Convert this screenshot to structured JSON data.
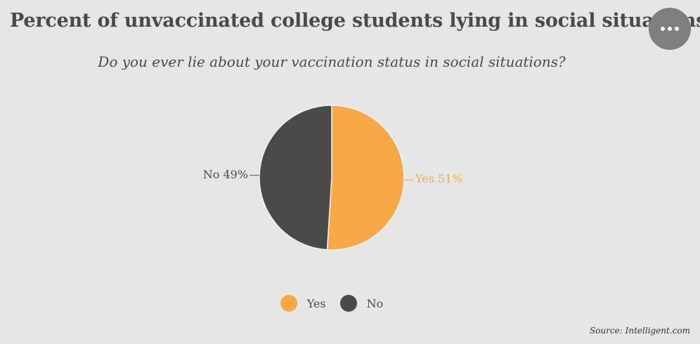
{
  "header": {
    "title": "Percent of unvaccinated college students lying in social situations",
    "menu_icon": "more-horizontal-icon"
  },
  "chart_data": {
    "type": "pie",
    "subtitle": "Do you ever lie about your vaccination status in social situations?",
    "slices": [
      {
        "label": "Yes",
        "value": 51,
        "data_label": "Yes 51%",
        "color": "#f9a846"
      },
      {
        "label": "No",
        "value": 49,
        "data_label": "No 49%",
        "color": "#4a4a4a"
      }
    ],
    "legend": {
      "placement": "bottom",
      "entries": [
        {
          "label": "Yes",
          "color": "#f9a846"
        },
        {
          "label": "No",
          "color": "#4a4a4a"
        }
      ]
    }
  },
  "footer": {
    "source": "Source: Intelligent.com"
  }
}
